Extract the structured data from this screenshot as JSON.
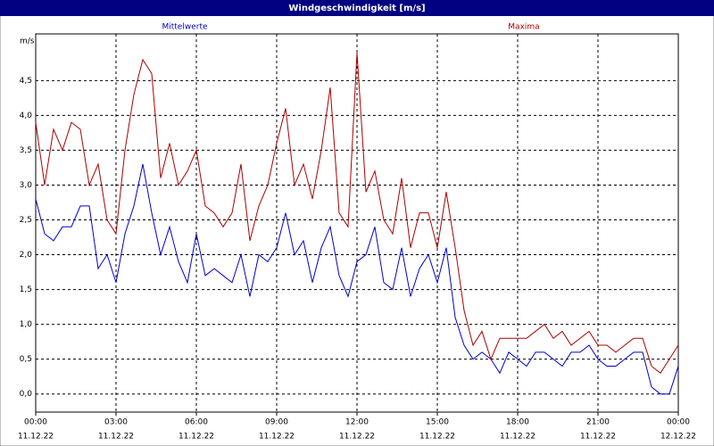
{
  "chart_data": {
    "type": "line",
    "title": "Windgeschwindigkeit [m/s]",
    "y_label": "m/s",
    "x": [
      0,
      20,
      40,
      60,
      80,
      100,
      120,
      140,
      160,
      180,
      200,
      220,
      240,
      260,
      280,
      300,
      320,
      340,
      360,
      380,
      400,
      420,
      440,
      460,
      480,
      500,
      520,
      540,
      560,
      580,
      600,
      620,
      640,
      660,
      680,
      700,
      720,
      740,
      760,
      780,
      800,
      820,
      840,
      860,
      880,
      900,
      920,
      940,
      960,
      980,
      1000,
      1020,
      1040,
      1060,
      1080,
      1100,
      1120,
      1140,
      1160,
      1180,
      1200,
      1220,
      1240,
      1260,
      1280,
      1300,
      1320,
      1340,
      1360,
      1380,
      1400,
      1420,
      1440
    ],
    "series": [
      {
        "name": "Mittelwerte",
        "color": "#0000cc",
        "values": [
          2.8,
          2.3,
          2.2,
          2.4,
          2.4,
          2.7,
          2.7,
          1.8,
          2.0,
          1.6,
          2.3,
          2.7,
          3.3,
          2.6,
          2.0,
          2.4,
          1.9,
          1.6,
          2.3,
          1.7,
          1.8,
          1.7,
          1.6,
          2.0,
          1.4,
          2.0,
          1.9,
          2.1,
          2.6,
          2.0,
          2.2,
          1.6,
          2.1,
          2.4,
          1.7,
          1.4,
          1.9,
          2.0,
          2.4,
          1.6,
          1.5,
          2.1,
          1.4,
          1.8,
          2.0,
          1.6,
          2.1,
          1.1,
          0.7,
          0.5,
          0.6,
          0.5,
          0.3,
          0.6,
          0.5,
          0.4,
          0.6,
          0.6,
          0.5,
          0.4,
          0.6,
          0.6,
          0.7,
          0.5,
          0.4,
          0.4,
          0.5,
          0.6,
          0.6,
          0.1,
          0.0,
          0.0,
          0.4
        ]
      },
      {
        "name": "Maxima",
        "color": "#aa0000",
        "values": [
          3.9,
          3.0,
          3.8,
          3.5,
          3.9,
          3.8,
          3.0,
          3.3,
          2.5,
          2.3,
          3.5,
          4.3,
          4.8,
          4.6,
          3.1,
          3.6,
          3.0,
          3.2,
          3.5,
          2.7,
          2.6,
          2.4,
          2.6,
          3.3,
          2.2,
          2.7,
          3.0,
          3.6,
          4.1,
          3.0,
          3.3,
          2.8,
          3.5,
          4.4,
          2.6,
          2.4,
          4.9,
          2.9,
          3.2,
          2.5,
          2.3,
          3.1,
          2.1,
          2.6,
          2.6,
          2.1,
          2.9,
          2.1,
          1.2,
          0.7,
          0.9,
          0.5,
          0.8,
          0.8,
          0.8,
          0.8,
          0.9,
          1.0,
          0.8,
          0.9,
          0.7,
          0.8,
          0.9,
          0.7,
          0.7,
          0.6,
          0.7,
          0.8,
          0.8,
          0.4,
          0.3,
          0.5,
          0.7
        ]
      }
    ],
    "xlim": [
      0,
      1440
    ],
    "xticks": [
      {
        "value": 0,
        "label": "00:00",
        "date": "11.12.22"
      },
      {
        "value": 180,
        "label": "03:00",
        "date": "11.12.22"
      },
      {
        "value": 360,
        "label": "06:00",
        "date": "11.12.22"
      },
      {
        "value": 540,
        "label": "09:00",
        "date": "11.12.22"
      },
      {
        "value": 720,
        "label": "12:00",
        "date": "11.12.22"
      },
      {
        "value": 900,
        "label": "15:00",
        "date": "11.12.22"
      },
      {
        "value": 1080,
        "label": "18:00",
        "date": "11.12.22"
      },
      {
        "value": 1260,
        "label": "21:00",
        "date": "11.12.22"
      },
      {
        "value": 1440,
        "label": "00:00",
        "date": "12.12.22"
      }
    ],
    "ylim": [
      -0.26,
      5.17
    ],
    "yticks": [
      {
        "value": 0,
        "label": "0,0"
      },
      {
        "value": 0.5,
        "label": "0,5"
      },
      {
        "value": 1,
        "label": "1,0"
      },
      {
        "value": 1.5,
        "label": "1,5"
      },
      {
        "value": 2,
        "label": "2,0"
      },
      {
        "value": 2.5,
        "label": "2,5"
      },
      {
        "value": 3,
        "label": "3,0"
      },
      {
        "value": 3.5,
        "label": "3,5"
      },
      {
        "value": 4,
        "label": "4,0"
      },
      {
        "value": 4.5,
        "label": "4,5"
      }
    ],
    "grid": true
  }
}
